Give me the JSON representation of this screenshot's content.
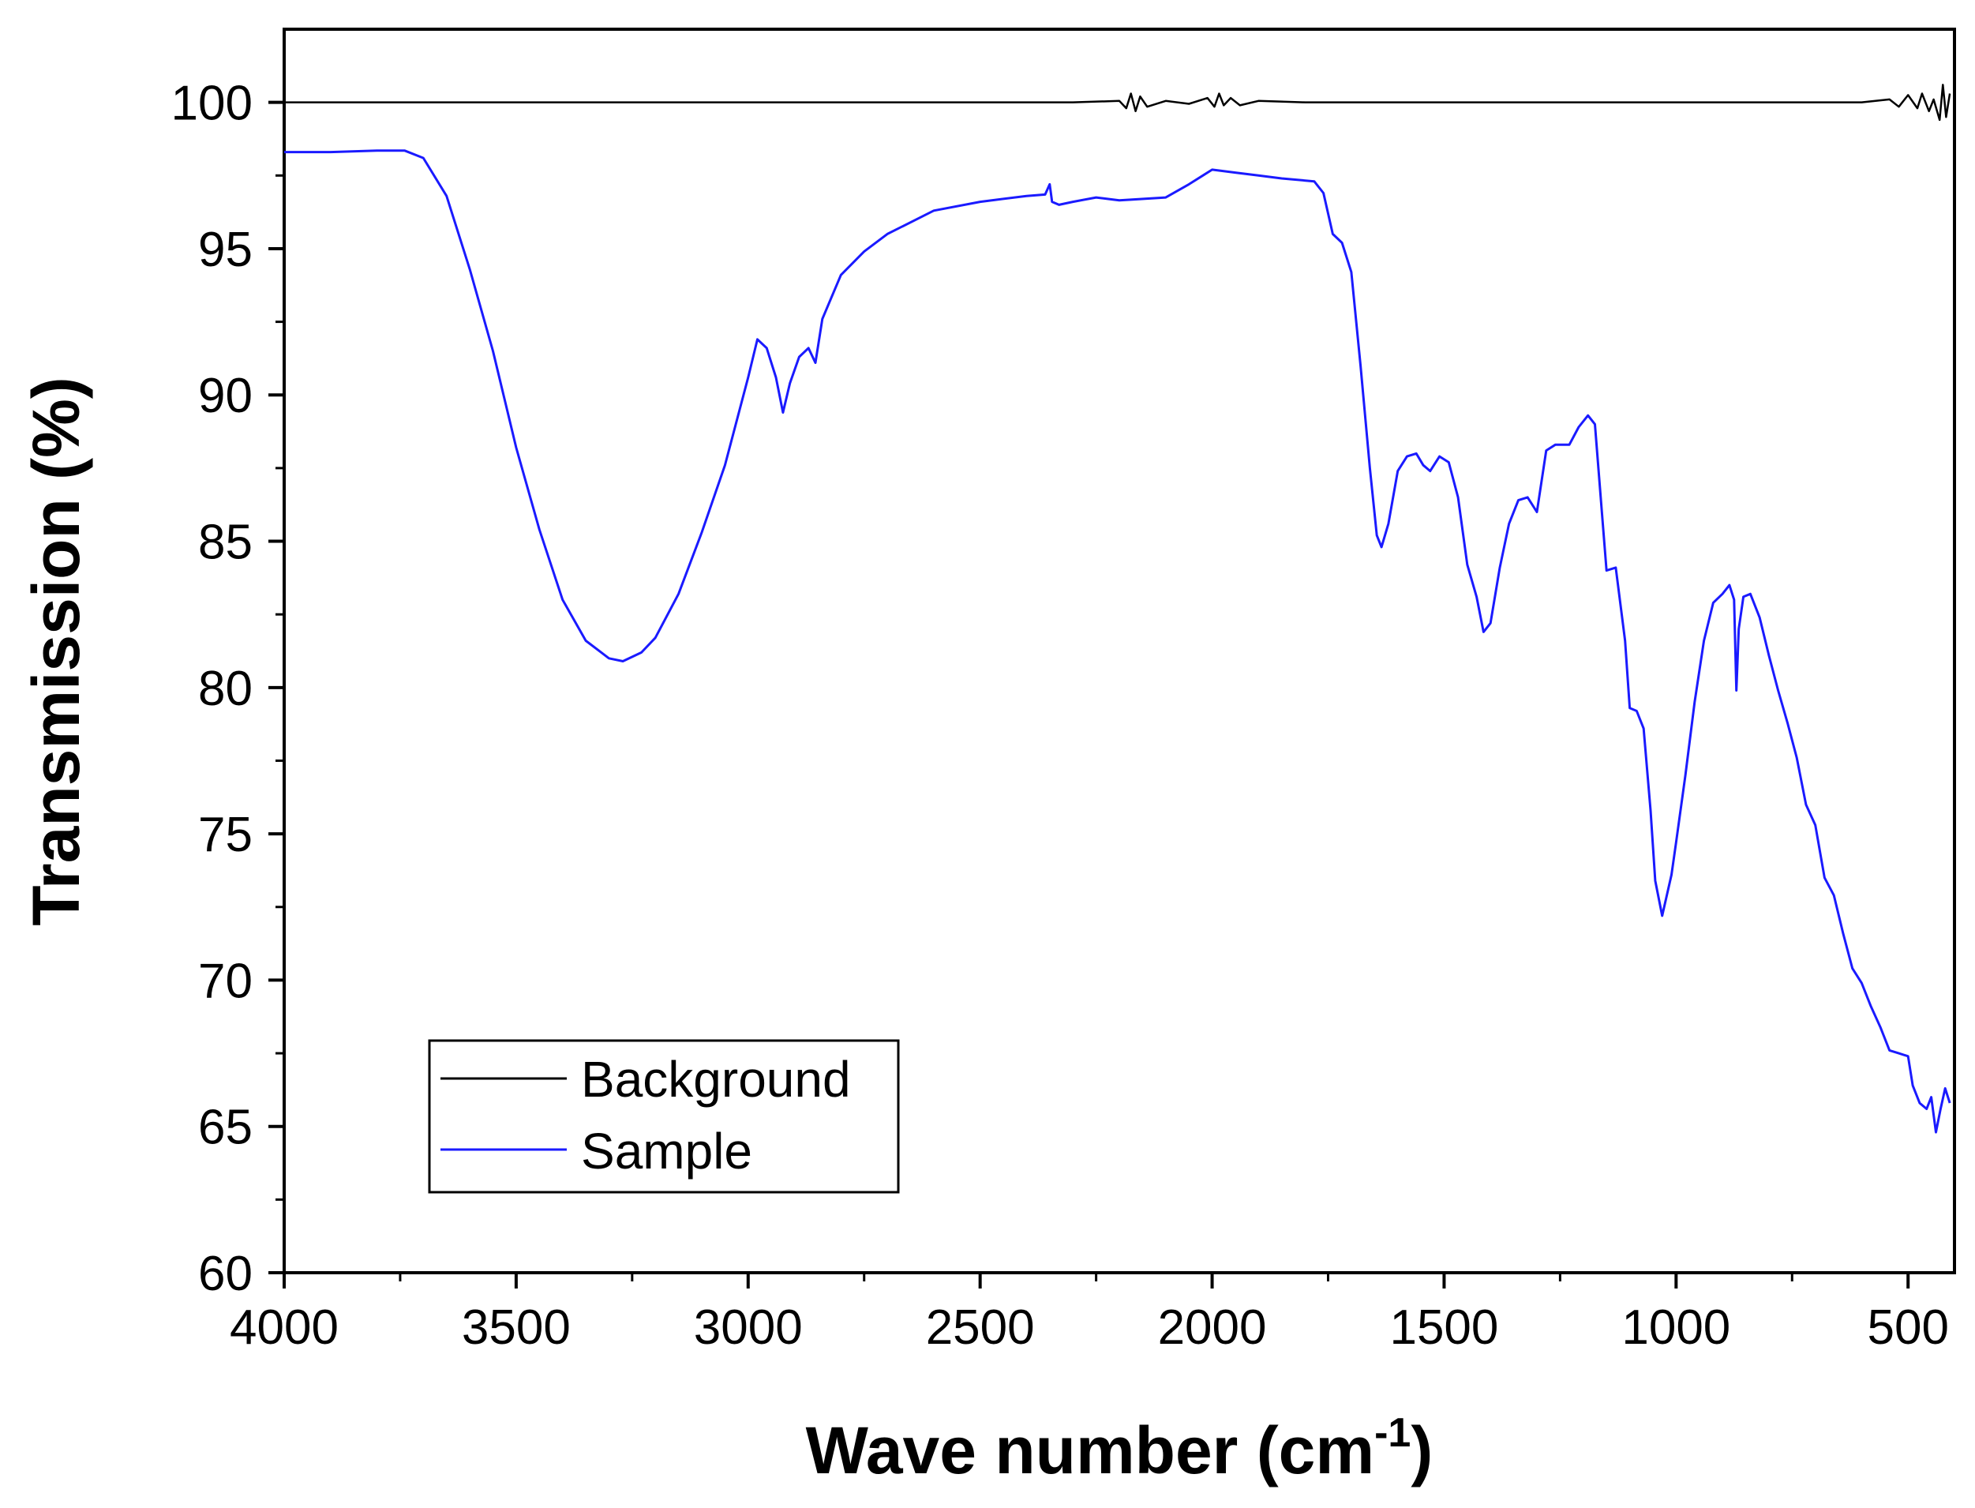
{
  "chart_data": {
    "type": "line",
    "title": "",
    "xlabel": "Wave number (cm",
    "xlabel_superscript": "-1",
    "xlabel_suffix": ")",
    "ylabel": "Transmission (%)",
    "xlim": [
      4000,
      400
    ],
    "ylim": [
      60,
      102.5
    ],
    "x_ticks": [
      4000,
      3500,
      3000,
      2500,
      2000,
      1500,
      1000,
      500
    ],
    "x_tick_labels": [
      "4000",
      "3500",
      "3000",
      "2500",
      "2000",
      "1500",
      "1000",
      "500"
    ],
    "y_ticks": [
      60,
      65,
      70,
      75,
      80,
      85,
      90,
      95,
      100
    ],
    "y_tick_labels": [
      "60",
      "65",
      "70",
      "75",
      "80",
      "85",
      "90",
      "95",
      "100"
    ],
    "grid": false,
    "legend_position": "bottom-left",
    "series": [
      {
        "name": "Background",
        "color": "#000000",
        "points": [
          [
            4000,
            100.0
          ],
          [
            3500,
            100.0
          ],
          [
            3000,
            100.0
          ],
          [
            2500,
            100.0
          ],
          [
            2300,
            100.0
          ],
          [
            2200,
            100.05
          ],
          [
            2185,
            99.8
          ],
          [
            2175,
            100.3
          ],
          [
            2165,
            99.7
          ],
          [
            2155,
            100.2
          ],
          [
            2140,
            99.85
          ],
          [
            2100,
            100.05
          ],
          [
            2050,
            99.95
          ],
          [
            2010,
            100.15
          ],
          [
            1995,
            99.85
          ],
          [
            1985,
            100.3
          ],
          [
            1975,
            99.9
          ],
          [
            1960,
            100.15
          ],
          [
            1940,
            99.9
          ],
          [
            1900,
            100.05
          ],
          [
            1800,
            100.0
          ],
          [
            1500,
            100.0
          ],
          [
            1000,
            100.0
          ],
          [
            600,
            100.0
          ],
          [
            540,
            100.1
          ],
          [
            520,
            99.85
          ],
          [
            500,
            100.25
          ],
          [
            480,
            99.8
          ],
          [
            470,
            100.3
          ],
          [
            455,
            99.7
          ],
          [
            445,
            100.1
          ],
          [
            432,
            99.4
          ],
          [
            425,
            100.6
          ],
          [
            418,
            99.5
          ],
          [
            410,
            100.3
          ]
        ]
      },
      {
        "name": "Sample",
        "color": "#1a1aff",
        "points": [
          [
            4000,
            98.3
          ],
          [
            3900,
            98.3
          ],
          [
            3800,
            98.35
          ],
          [
            3740,
            98.35
          ],
          [
            3700,
            98.1
          ],
          [
            3650,
            96.8
          ],
          [
            3600,
            94.3
          ],
          [
            3550,
            91.5
          ],
          [
            3500,
            88.2
          ],
          [
            3450,
            85.4
          ],
          [
            3400,
            83.0
          ],
          [
            3350,
            81.6
          ],
          [
            3300,
            81.0
          ],
          [
            3270,
            80.9
          ],
          [
            3230,
            81.2
          ],
          [
            3200,
            81.7
          ],
          [
            3150,
            83.2
          ],
          [
            3100,
            85.3
          ],
          [
            3050,
            87.6
          ],
          [
            3000,
            90.6
          ],
          [
            2980,
            91.9
          ],
          [
            2960,
            91.6
          ],
          [
            2940,
            90.6
          ],
          [
            2925,
            89.4
          ],
          [
            2910,
            90.4
          ],
          [
            2890,
            91.3
          ],
          [
            2870,
            91.6
          ],
          [
            2855,
            91.1
          ],
          [
            2840,
            92.6
          ],
          [
            2800,
            94.1
          ],
          [
            2750,
            94.9
          ],
          [
            2700,
            95.5
          ],
          [
            2600,
            96.3
          ],
          [
            2500,
            96.6
          ],
          [
            2400,
            96.8
          ],
          [
            2360,
            96.85
          ],
          [
            2350,
            97.2
          ],
          [
            2345,
            96.6
          ],
          [
            2330,
            96.5
          ],
          [
            2300,
            96.6
          ],
          [
            2250,
            96.75
          ],
          [
            2200,
            96.65
          ],
          [
            2100,
            96.75
          ],
          [
            2050,
            97.2
          ],
          [
            2000,
            97.7
          ],
          [
            1950,
            97.6
          ],
          [
            1900,
            97.5
          ],
          [
            1850,
            97.4
          ],
          [
            1780,
            97.3
          ],
          [
            1760,
            96.9
          ],
          [
            1740,
            95.5
          ],
          [
            1720,
            95.2
          ],
          [
            1700,
            94.2
          ],
          [
            1680,
            91.0
          ],
          [
            1660,
            87.5
          ],
          [
            1645,
            85.2
          ],
          [
            1635,
            84.8
          ],
          [
            1620,
            85.6
          ],
          [
            1600,
            87.4
          ],
          [
            1580,
            87.9
          ],
          [
            1560,
            88.0
          ],
          [
            1545,
            87.6
          ],
          [
            1530,
            87.4
          ],
          [
            1510,
            87.9
          ],
          [
            1490,
            87.7
          ],
          [
            1470,
            86.5
          ],
          [
            1450,
            84.2
          ],
          [
            1430,
            83.1
          ],
          [
            1415,
            81.9
          ],
          [
            1400,
            82.2
          ],
          [
            1380,
            84.1
          ],
          [
            1360,
            85.6
          ],
          [
            1340,
            86.4
          ],
          [
            1320,
            86.5
          ],
          [
            1300,
            86.0
          ],
          [
            1280,
            88.1
          ],
          [
            1260,
            88.3
          ],
          [
            1230,
            88.3
          ],
          [
            1210,
            88.9
          ],
          [
            1190,
            89.3
          ],
          [
            1175,
            89.0
          ],
          [
            1160,
            86.0
          ],
          [
            1150,
            84.0
          ],
          [
            1130,
            84.1
          ],
          [
            1110,
            81.6
          ],
          [
            1100,
            79.3
          ],
          [
            1085,
            79.2
          ],
          [
            1070,
            78.6
          ],
          [
            1055,
            75.8
          ],
          [
            1045,
            73.4
          ],
          [
            1030,
            72.2
          ],
          [
            1020,
            72.9
          ],
          [
            1010,
            73.6
          ],
          [
            1000,
            74.7
          ],
          [
            980,
            77.0
          ],
          [
            960,
            79.5
          ],
          [
            940,
            81.6
          ],
          [
            920,
            82.9
          ],
          [
            900,
            83.2
          ],
          [
            885,
            83.5
          ],
          [
            875,
            83.0
          ],
          [
            870,
            79.9
          ],
          [
            865,
            82.0
          ],
          [
            855,
            83.1
          ],
          [
            840,
            83.2
          ],
          [
            820,
            82.4
          ],
          [
            800,
            81.1
          ],
          [
            780,
            79.9
          ],
          [
            760,
            78.8
          ],
          [
            740,
            77.6
          ],
          [
            720,
            76.0
          ],
          [
            700,
            75.3
          ],
          [
            680,
            73.5
          ],
          [
            660,
            72.9
          ],
          [
            640,
            71.6
          ],
          [
            620,
            70.4
          ],
          [
            600,
            69.9
          ],
          [
            580,
            69.1
          ],
          [
            560,
            68.4
          ],
          [
            540,
            67.6
          ],
          [
            520,
            67.5
          ],
          [
            500,
            67.4
          ],
          [
            490,
            66.4
          ],
          [
            475,
            65.8
          ],
          [
            460,
            65.6
          ],
          [
            450,
            66.0
          ],
          [
            440,
            64.8
          ],
          [
            430,
            65.6
          ],
          [
            420,
            66.3
          ],
          [
            410,
            65.8
          ]
        ]
      }
    ]
  }
}
